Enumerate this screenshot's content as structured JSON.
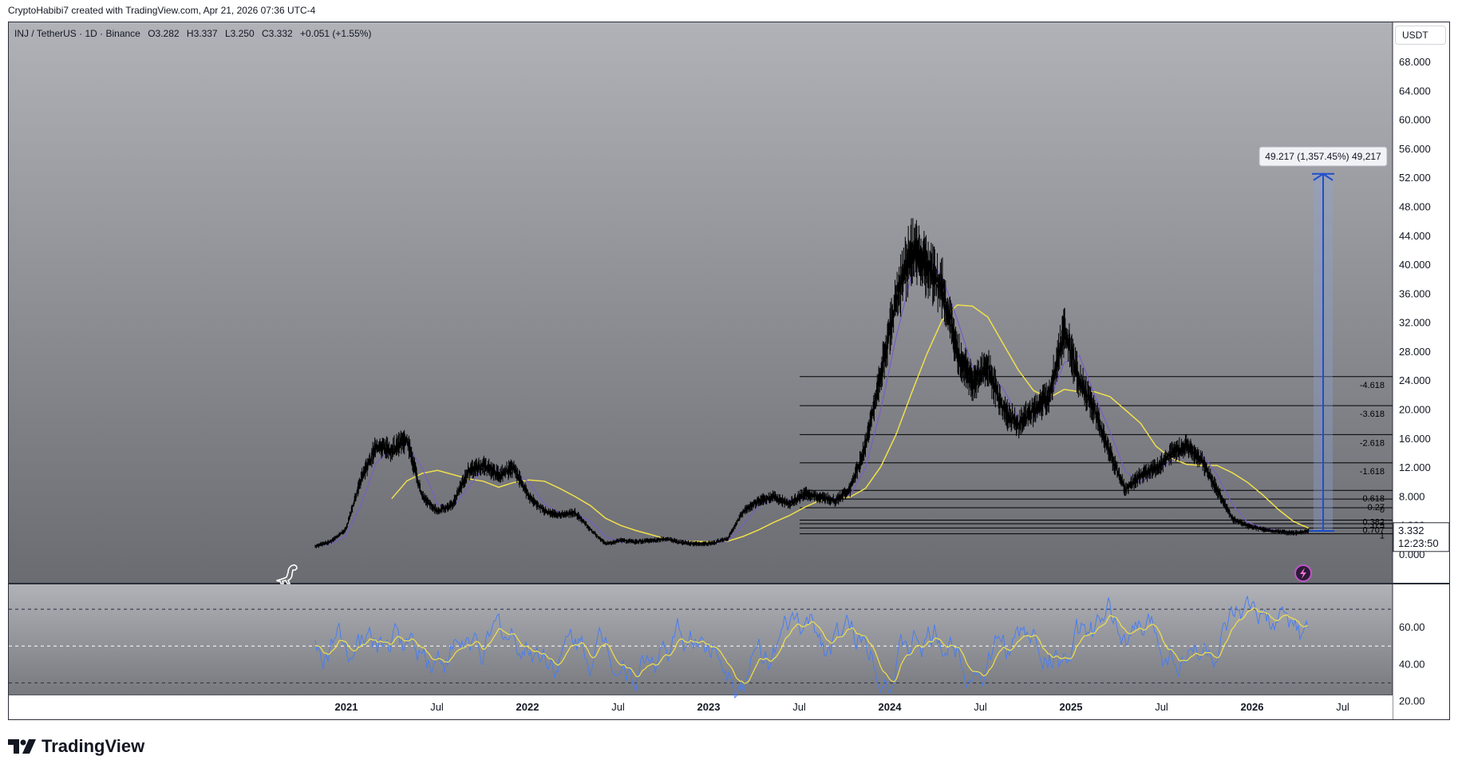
{
  "credit": "CryptoHabibi7 created with TradingView.com, Apr 21, 2026 07:36 UTC-4",
  "symbol": {
    "pair": "INJ / TetherUS · 1D · Binance",
    "open": "O3.282",
    "high": "H3.337",
    "low": "L3.250",
    "close": "C3.332",
    "change": "+0.051 (+1.55%)"
  },
  "currency_button": "USDT",
  "brand": "TradingView",
  "icons": [
    "dinosaur-icon",
    "lightning-icon",
    "tradingview-logo-icon"
  ],
  "colors": {
    "price_line": "#000000",
    "ma_fast": "#7b5cc4",
    "ma_slow": "#f0e04a",
    "rsi": "#4a7df0",
    "rsi_ma": "#f0e04a",
    "measure": "#1f4fcc",
    "background_top": "#a8aab0",
    "background_bottom": "#6e7076"
  },
  "chart_data": {
    "type": "line",
    "title": "",
    "xlabel": "",
    "ylabel": "",
    "ylim": [
      0,
      70
    ],
    "x_ticks": [
      "2021",
      "Jul",
      "2022",
      "Jul",
      "2023",
      "Jul",
      "2024",
      "Jul",
      "2025",
      "Jul",
      "2026",
      "Jul"
    ],
    "y_ticks": [
      "0.000",
      "4.000",
      "8.000",
      "12.000",
      "16.000",
      "20.000",
      "24.000",
      "28.000",
      "32.000",
      "36.000",
      "40.000",
      "44.000",
      "48.000",
      "52.000",
      "56.000",
      "60.000",
      "64.000",
      "68.000"
    ],
    "series": [
      {
        "name": "",
        "x": [
          "2020-11",
          "2020-12",
          "2021-01",
          "2021-02",
          "2021-03",
          "2021-04",
          "2021-05",
          "2021-06",
          "2021-07",
          "2021-08",
          "2021-09",
          "2021-10",
          "2021-11",
          "2021-12",
          "2022-01",
          "2022-02",
          "2022-03",
          "2022-04",
          "2022-05",
          "2022-06",
          "2022-07",
          "2022-08",
          "2022-09",
          "2022-10",
          "2022-11",
          "2022-12",
          "2023-01",
          "2023-02",
          "2023-03",
          "2023-04",
          "2023-05",
          "2023-06",
          "2023-07",
          "2023-08",
          "2023-09",
          "2023-10",
          "2023-11",
          "2023-12",
          "2024-01",
          "2024-02",
          "2024-03",
          "2024-04",
          "2024-05",
          "2024-06",
          "2024-07",
          "2024-08",
          "2024-09",
          "2024-10",
          "2024-11",
          "2024-12",
          "2025-01",
          "2025-02",
          "2025-03",
          "2025-04",
          "2025-05",
          "2025-06",
          "2025-07",
          "2025-08",
          "2025-09",
          "2025-10",
          "2025-11",
          "2025-12",
          "2026-01",
          "2026-02",
          "2026-03",
          "2026-04"
        ],
        "values": [
          1.2,
          1.8,
          3.5,
          10.5,
          15.0,
          14.5,
          16.0,
          8.0,
          6.0,
          7.0,
          11.5,
          12.5,
          11.0,
          12.0,
          8.0,
          6.0,
          5.5,
          5.8,
          3.5,
          1.5,
          2.0,
          1.8,
          2.0,
          2.2,
          1.7,
          1.5,
          1.6,
          2.3,
          6.0,
          7.5,
          8.0,
          7.0,
          8.5,
          8.0,
          7.5,
          9.0,
          15.0,
          25.0,
          35.0,
          42.0,
          40.0,
          37.0,
          28.0,
          24.0,
          26.0,
          20.0,
          18.0,
          20.0,
          22.0,
          31.0,
          24.0,
          20.0,
          14.0,
          9.0,
          11.0,
          12.0,
          14.0,
          15.0,
          13.0,
          9.0,
          5.0,
          4.0,
          3.5,
          3.2,
          3.0,
          3.3
        ]
      }
    ],
    "fib_levels": [
      "-4.618",
      "-3.618",
      "-2.618",
      "-1.618",
      "0.618",
      "-0.27",
      "0",
      "0.382",
      "0.5",
      "0.707",
      "1"
    ],
    "last_price": "3.332",
    "countdown": "12:23:50",
    "measure_label": "49.217 (1,357.45%) 49,217",
    "rsi": {
      "y_ticks": [
        "20.00",
        "40.00",
        "60.00"
      ],
      "ylim": [
        15,
        80
      ],
      "upper_band": 70,
      "middle_band": 50,
      "lower_band": 30
    }
  }
}
